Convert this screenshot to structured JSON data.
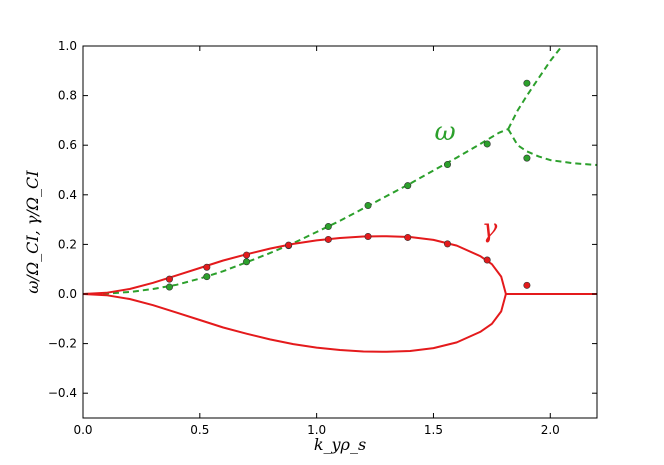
{
  "chart_data": {
    "type": "line",
    "xlabel": "k_yρ_s",
    "ylabel": "ω/Ω_CI, γ/Ω_CI",
    "xlim": [
      0.0,
      2.2
    ],
    "ylim": [
      -0.5,
      1.0
    ],
    "x_ticks": [
      "0.0",
      "0.5",
      "1.0",
      "1.5",
      "2.0"
    ],
    "x_tick_values": [
      0.0,
      0.5,
      1.0,
      1.5,
      2.0
    ],
    "y_ticks": [
      "−0.4",
      "−0.2",
      "0.0",
      "0.2",
      "0.4",
      "0.6",
      "0.8",
      "1.0"
    ],
    "y_tick_values": [
      -0.4,
      -0.2,
      0.0,
      0.2,
      0.4,
      0.6,
      0.8,
      1.0
    ],
    "grid": false,
    "series": [
      {
        "name": "ω",
        "color": "#2ca02c",
        "style": "dashed",
        "curve_branches": [
          [
            [
              0.0,
              0.0
            ],
            [
              0.1,
              0.002
            ],
            [
              0.2,
              0.008
            ],
            [
              0.3,
              0.02
            ],
            [
              0.4,
              0.037
            ],
            [
              0.5,
              0.062
            ],
            [
              0.6,
              0.092
            ],
            [
              0.7,
              0.128
            ],
            [
              0.8,
              0.165
            ],
            [
              0.9,
              0.205
            ],
            [
              1.0,
              0.25
            ],
            [
              1.1,
              0.295
            ],
            [
              1.2,
              0.345
            ],
            [
              1.3,
              0.395
            ],
            [
              1.4,
              0.445
            ],
            [
              1.5,
              0.498
            ],
            [
              1.6,
              0.55
            ],
            [
              1.7,
              0.605
            ],
            [
              1.78,
              0.65
            ],
            [
              1.82,
              0.665
            ]
          ],
          [
            [
              1.82,
              0.665
            ],
            [
              1.86,
              0.74
            ],
            [
              1.9,
              0.8
            ],
            [
              1.95,
              0.87
            ],
            [
              2.0,
              0.94
            ],
            [
              2.05,
              1.0
            ]
          ],
          [
            [
              1.82,
              0.665
            ],
            [
              1.86,
              0.6
            ],
            [
              1.9,
              0.575
            ],
            [
              1.95,
              0.555
            ],
            [
              2.0,
              0.54
            ],
            [
              2.1,
              0.527
            ],
            [
              2.2,
              0.52
            ]
          ]
        ],
        "points": [
          [
            0.37,
            0.028
          ],
          [
            0.53,
            0.07
          ],
          [
            0.7,
            0.13
          ],
          [
            0.88,
            0.195
          ],
          [
            1.05,
            0.272
          ],
          [
            1.22,
            0.357
          ],
          [
            1.39,
            0.437
          ],
          [
            1.56,
            0.522
          ],
          [
            1.73,
            0.605
          ],
          [
            1.9,
            0.85
          ],
          [
            1.9,
            0.548
          ]
        ]
      },
      {
        "name": "γ",
        "color": "#e41a1c",
        "style": "solid",
        "curve_branches": [
          [
            [
              0.0,
              0.0
            ],
            [
              0.1,
              0.005
            ],
            [
              0.2,
              0.02
            ],
            [
              0.3,
              0.045
            ],
            [
              0.4,
              0.075
            ],
            [
              0.5,
              0.105
            ],
            [
              0.6,
              0.135
            ],
            [
              0.7,
              0.16
            ],
            [
              0.8,
              0.183
            ],
            [
              0.9,
              0.202
            ],
            [
              1.0,
              0.216
            ],
            [
              1.1,
              0.226
            ],
            [
              1.2,
              0.232
            ],
            [
              1.3,
              0.233
            ],
            [
              1.4,
              0.23
            ],
            [
              1.5,
              0.218
            ],
            [
              1.6,
              0.195
            ],
            [
              1.7,
              0.153
            ],
            [
              1.75,
              0.12
            ],
            [
              1.79,
              0.07
            ],
            [
              1.81,
              0.0
            ]
          ],
          [
            [
              1.81,
              0.0
            ],
            [
              1.79,
              -0.07
            ],
            [
              1.75,
              -0.12
            ],
            [
              1.7,
              -0.153
            ],
            [
              1.6,
              -0.195
            ],
            [
              1.5,
              -0.218
            ],
            [
              1.4,
              -0.23
            ],
            [
              1.3,
              -0.233
            ],
            [
              1.2,
              -0.232
            ],
            [
              1.1,
              -0.226
            ],
            [
              1.0,
              -0.216
            ],
            [
              0.9,
              -0.202
            ],
            [
              0.8,
              -0.183
            ],
            [
              0.7,
              -0.16
            ],
            [
              0.6,
              -0.135
            ],
            [
              0.5,
              -0.105
            ],
            [
              0.4,
              -0.075
            ],
            [
              0.3,
              -0.045
            ],
            [
              0.2,
              -0.02
            ],
            [
              0.1,
              -0.005
            ],
            [
              0.0,
              0.0
            ]
          ],
          [
            [
              1.81,
              0.0
            ],
            [
              2.2,
              0.0
            ]
          ]
        ],
        "points": [
          [
            0.37,
            0.06
          ],
          [
            0.53,
            0.108
          ],
          [
            0.7,
            0.157
          ],
          [
            0.88,
            0.197
          ],
          [
            1.05,
            0.22
          ],
          [
            1.22,
            0.232
          ],
          [
            1.39,
            0.228
          ],
          [
            1.56,
            0.202
          ],
          [
            1.73,
            0.137
          ],
          [
            1.9,
            0.035
          ]
        ]
      }
    ],
    "annotations": [
      {
        "text": "ω",
        "x": 1.55,
        "y": 0.62,
        "color": "#2ca02c"
      },
      {
        "text": "γ",
        "x": 1.74,
        "y": 0.23,
        "color": "#e41a1c"
      }
    ]
  }
}
